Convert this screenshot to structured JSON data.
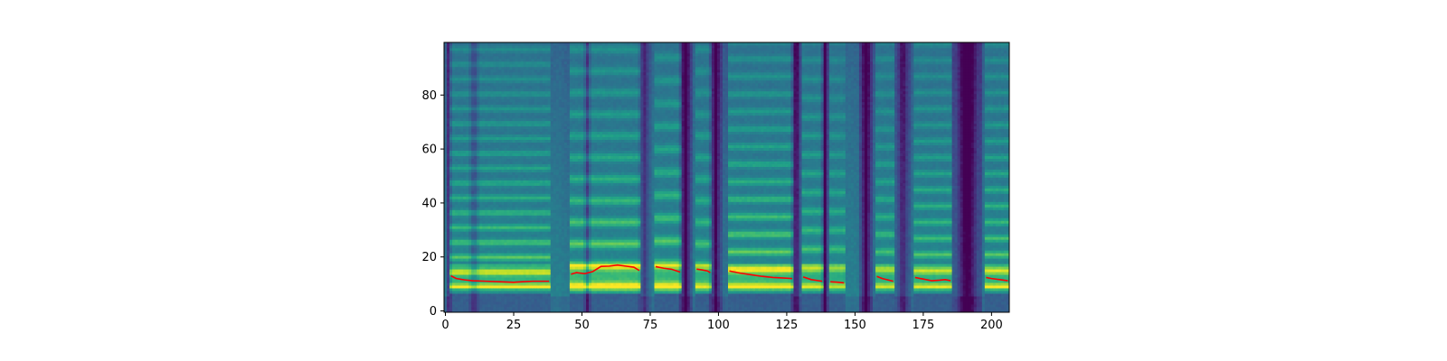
{
  "chart_data": {
    "type": "heatmap",
    "title": "",
    "xlabel": "",
    "ylabel": "",
    "xlim": [
      0,
      206
    ],
    "ylim": [
      0,
      99
    ],
    "x_ticks": [
      0,
      25,
      50,
      75,
      100,
      125,
      150,
      175,
      200
    ],
    "y_ticks": [
      0,
      20,
      40,
      60,
      80
    ],
    "x_tick_labels": [
      "0",
      "25",
      "50",
      "75",
      "100",
      "125",
      "150",
      "175",
      "200"
    ],
    "y_tick_labels": [
      "0",
      "20",
      "40",
      "60",
      "80"
    ],
    "colormap": "viridis",
    "grid": false,
    "legend": "none",
    "voiced_segments": [
      {
        "x": [
          2,
          38
        ],
        "harmonic_spacing": 5.5,
        "strength": 0.8
      },
      {
        "x": [
          46,
          71
        ],
        "harmonic_spacing": 8.0,
        "strength": 0.95
      },
      {
        "x": [
          77,
          86
        ],
        "harmonic_spacing": 8.5,
        "strength": 0.9
      },
      {
        "x": [
          92,
          97
        ],
        "harmonic_spacing": 8.0,
        "strength": 0.75
      },
      {
        "x": [
          104,
          127
        ],
        "harmonic_spacing": 6.5,
        "strength": 0.9
      },
      {
        "x": [
          131,
          138
        ],
        "harmonic_spacing": 7.0,
        "strength": 0.75
      },
      {
        "x": [
          141,
          146
        ],
        "harmonic_spacing": 7.0,
        "strength": 0.65
      },
      {
        "x": [
          158,
          164
        ],
        "harmonic_spacing": 6.5,
        "strength": 0.7
      },
      {
        "x": [
          172,
          185
        ],
        "harmonic_spacing": 6.0,
        "strength": 0.75
      },
      {
        "x": [
          198,
          206
        ],
        "harmonic_spacing": 6.0,
        "strength": 0.8
      }
    ],
    "silent_bands": [
      {
        "x": [
          0.5,
          2
        ],
        "depth": 0.6
      },
      {
        "x": [
          9,
          12
        ],
        "depth": 0.45
      },
      {
        "x": [
          51,
          53
        ],
        "depth": 0.55
      },
      {
        "x": [
          71,
          75
        ],
        "depth": 0.5
      },
      {
        "x": [
          86,
          90
        ],
        "depth": 0.9
      },
      {
        "x": [
          97,
          101
        ],
        "depth": 0.85
      },
      {
        "x": [
          127,
          130
        ],
        "depth": 0.9
      },
      {
        "x": [
          138,
          140
        ],
        "depth": 0.8
      },
      {
        "x": [
          152,
          156
        ],
        "depth": 0.95
      },
      {
        "x": [
          165,
          170
        ],
        "depth": 0.75
      },
      {
        "x": [
          186,
          196
        ],
        "depth": 1.0
      }
    ],
    "series": [
      {
        "type": "line",
        "color": "#ff0000",
        "segments": [
          [
            [
              2,
              13
            ],
            [
              4,
              12
            ],
            [
              7,
              11.5
            ],
            [
              10,
              11.2
            ],
            [
              15,
              11
            ],
            [
              20,
              10.8
            ],
            [
              25,
              10.6
            ],
            [
              28,
              10.8
            ],
            [
              32,
              11
            ],
            [
              35,
              11
            ],
            [
              38,
              11
            ]
          ],
          [
            [
              46,
              13.6
            ],
            [
              48,
              14.2
            ],
            [
              51,
              13.8
            ],
            [
              54,
              14.6
            ],
            [
              57,
              16.5
            ],
            [
              60,
              16.6
            ],
            [
              63,
              17
            ],
            [
              66,
              16.6
            ],
            [
              69,
              16.2
            ],
            [
              71,
              15
            ]
          ],
          [
            [
              77,
              16.4
            ],
            [
              80,
              15.8
            ],
            [
              83,
              15.4
            ],
            [
              86,
              14.4
            ]
          ],
          [
            [
              92,
              15.5
            ],
            [
              94,
              15.2
            ],
            [
              96,
              14.8
            ],
            [
              97,
              14.2
            ]
          ],
          [
            [
              104,
              14.8
            ],
            [
              108,
              14
            ],
            [
              112,
              13.4
            ],
            [
              116,
              12.8
            ],
            [
              120,
              12.4
            ],
            [
              124,
              12.2
            ],
            [
              127,
              12
            ]
          ],
          [
            [
              131,
              12.6
            ],
            [
              134,
              11.6
            ],
            [
              138,
              11
            ]
          ],
          [
            [
              141,
              10.8
            ],
            [
              144,
              10.6
            ],
            [
              146,
              10.4
            ]
          ],
          [
            [
              158,
              12.8
            ],
            [
              160,
              12
            ],
            [
              164,
              11
            ]
          ],
          [
            [
              172,
              12.4
            ],
            [
              175,
              11.8
            ],
            [
              178,
              11.2
            ],
            [
              181,
              11.4
            ],
            [
              183,
              11.6
            ],
            [
              185,
              11.2
            ]
          ],
          [
            [
              198,
              12.4
            ],
            [
              200,
              12
            ],
            [
              203,
              11.6
            ],
            [
              206,
              11.2
            ]
          ]
        ]
      }
    ]
  }
}
